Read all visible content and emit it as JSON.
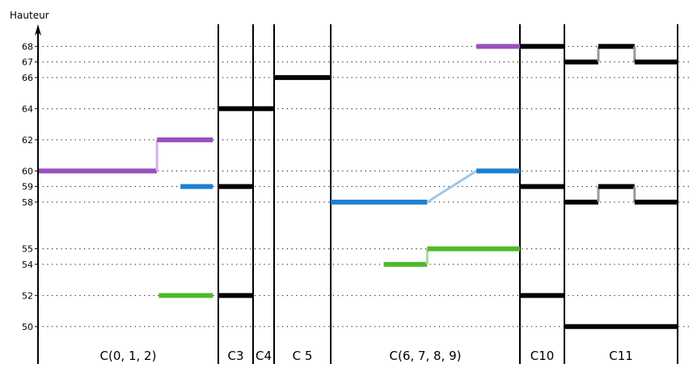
{
  "chart_data": {
    "type": "step-diagram",
    "ylabel": "Hauteur",
    "yticks": [
      50,
      52,
      54,
      55,
      58,
      59,
      60,
      62,
      64,
      66,
      67,
      68
    ],
    "ylim": [
      47.6,
      68.8
    ],
    "segments": [
      {
        "label": "C(0, 1, 2)",
        "x_start": 0,
        "x_end": 1
      },
      {
        "label": "C3",
        "x_start": 1,
        "x_end": 2
      },
      {
        "label": "C4",
        "x_start": 2,
        "x_end": 3
      },
      {
        "label": "C 5",
        "x_start": 3,
        "x_end": 4
      },
      {
        "label": "C(6, 7, 8, 9)",
        "x_start": 4,
        "x_end": 5
      },
      {
        "label": "C10",
        "x_start": 5,
        "x_end": 6
      },
      {
        "label": "C11",
        "x_start": 6,
        "x_end": 7
      }
    ],
    "series": [
      {
        "color": "#9b4fbf",
        "connector_color": "#d9aee8",
        "points": [
          [
            0.0,
            60
          ],
          [
            0.66,
            60
          ],
          [
            0.66,
            62
          ],
          [
            0.97,
            62
          ]
        ]
      },
      {
        "color": "#9b4fbf",
        "connector_color": "#d9aee8",
        "points": [
          [
            4.77,
            68
          ],
          [
            5.0,
            68
          ]
        ]
      },
      {
        "color": "#1f7fd0",
        "connector_color": "#9cc7ea",
        "points": [
          [
            0.79,
            59
          ],
          [
            0.97,
            59
          ]
        ]
      },
      {
        "color": "#1f7fd0",
        "connector_color": "#9cc7ea",
        "points": [
          [
            4.0,
            58
          ],
          [
            4.51,
            58
          ],
          [
            4.77,
            60
          ],
          [
            5.0,
            60
          ]
        ]
      },
      {
        "color": "#4fba2c",
        "connector_color": "#a6de90",
        "points": [
          [
            0.67,
            52
          ],
          [
            0.97,
            52
          ]
        ]
      },
      {
        "color": "#4fba2c",
        "connector_color": "#a6de90",
        "points": [
          [
            4.28,
            54
          ],
          [
            4.51,
            54
          ],
          [
            4.51,
            55
          ],
          [
            5.0,
            55
          ]
        ]
      },
      {
        "color": "#000000",
        "connector_color": "#999999",
        "points": [
          [
            1.0,
            59
          ],
          [
            2.0,
            59
          ]
        ]
      },
      {
        "color": "#000000",
        "connector_color": "#999999",
        "points": [
          [
            1.0,
            52
          ],
          [
            2.0,
            52
          ]
        ]
      },
      {
        "color": "#000000",
        "connector_color": "#999999",
        "points": [
          [
            1.0,
            64
          ],
          [
            3.0,
            64
          ]
        ]
      },
      {
        "color": "#000000",
        "connector_color": "#999999",
        "points": [
          [
            3.0,
            66
          ],
          [
            4.0,
            66
          ]
        ]
      },
      {
        "color": "#000000",
        "connector_color": "#999999",
        "points": [
          [
            5.0,
            68
          ],
          [
            6.0,
            68
          ]
        ]
      },
      {
        "color": "#000000",
        "connector_color": "#999999",
        "points": [
          [
            5.0,
            59
          ],
          [
            6.0,
            59
          ]
        ]
      },
      {
        "color": "#000000",
        "connector_color": "#999999",
        "points": [
          [
            5.0,
            52
          ],
          [
            6.0,
            52
          ]
        ]
      },
      {
        "color": "#000000",
        "connector_color": "#999999",
        "points": [
          [
            6.0,
            67
          ],
          [
            6.3,
            67
          ],
          [
            6.3,
            68
          ],
          [
            6.62,
            68
          ],
          [
            6.62,
            67
          ],
          [
            7.0,
            67
          ]
        ]
      },
      {
        "color": "#000000",
        "connector_color": "#999999",
        "points": [
          [
            6.0,
            58
          ],
          [
            6.3,
            58
          ],
          [
            6.3,
            59
          ],
          [
            6.62,
            59
          ],
          [
            6.62,
            58
          ],
          [
            7.0,
            58
          ]
        ]
      },
      {
        "color": "#000000",
        "connector_color": "#999999",
        "points": [
          [
            6.0,
            50
          ],
          [
            7.0,
            50
          ]
        ]
      }
    ]
  }
}
